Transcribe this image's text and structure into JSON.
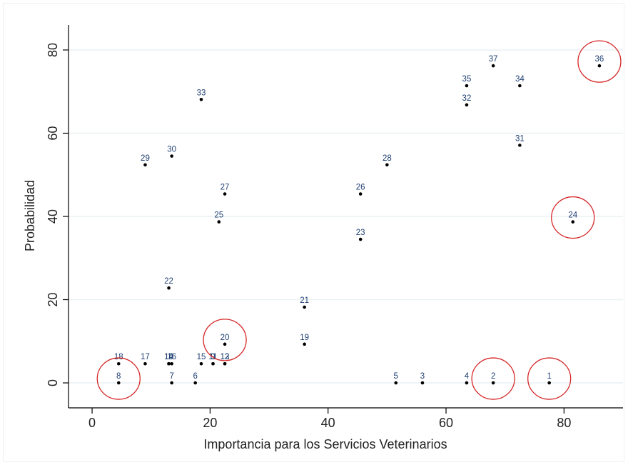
{
  "chart_data": {
    "type": "scatter",
    "title": "",
    "xlabel": "Importancia para los Servicios Veterinarios",
    "ylabel": "Probabilidad",
    "xlim": [
      -4,
      90
    ],
    "ylim": [
      -6,
      86
    ],
    "xticks": [
      0,
      20,
      40,
      60,
      80
    ],
    "yticks": [
      0,
      20,
      40,
      60,
      80
    ],
    "grid": "horizontal",
    "legend": "none",
    "colors": {
      "grid": "#eaf1f4",
      "axis": "#000000",
      "point": "#000000",
      "label": "#1f3f73",
      "highlight": "#d62728"
    },
    "points": [
      {
        "label": "1",
        "x": 77.5,
        "y": 0
      },
      {
        "label": "2",
        "x": 68,
        "y": 0,
        "highlight": true
      },
      {
        "label": "3",
        "x": 56,
        "y": 0
      },
      {
        "label": "4",
        "x": 63.5,
        "y": 0
      },
      {
        "label": "5",
        "x": 51.5,
        "y": 0
      },
      {
        "label": "6",
        "x": 17.5,
        "y": 0
      },
      {
        "label": "7",
        "x": 13.5,
        "y": 0
      },
      {
        "label": "8",
        "x": 4.5,
        "y": 0,
        "highlight": true
      },
      {
        "label": "9",
        "x": 20.5,
        "y": 4.6
      },
      {
        "label": "10",
        "x": 13,
        "y": 4.6
      },
      {
        "label": "11",
        "x": 20.5,
        "y": 4.6
      },
      {
        "label": "12",
        "x": 22.5,
        "y": 4.6
      },
      {
        "label": "13",
        "x": 22.5,
        "y": 4.6
      },
      {
        "label": "14",
        "x": 13,
        "y": 4.6
      },
      {
        "label": "15",
        "x": 18.5,
        "y": 4.6
      },
      {
        "label": "16",
        "x": 13.5,
        "y": 4.6
      },
      {
        "label": "17",
        "x": 9,
        "y": 4.6
      },
      {
        "label": "18",
        "x": 4.5,
        "y": 4.6
      },
      {
        "label": "19",
        "x": 36,
        "y": 9.3
      },
      {
        "label": "20",
        "x": 22.5,
        "y": 9.3,
        "highlight": true
      },
      {
        "label": "21",
        "x": 36,
        "y": 18.2
      },
      {
        "label": "22",
        "x": 13,
        "y": 22.8
      },
      {
        "label": "23",
        "x": 45.5,
        "y": 34.5
      },
      {
        "label": "24",
        "x": 81.5,
        "y": 38.7,
        "highlight": true
      },
      {
        "label": "25",
        "x": 21.5,
        "y": 38.7
      },
      {
        "label": "26",
        "x": 45.5,
        "y": 45.4
      },
      {
        "label": "27",
        "x": 22.5,
        "y": 45.4
      },
      {
        "label": "28",
        "x": 50,
        "y": 52.4
      },
      {
        "label": "29",
        "x": 9,
        "y": 52.4
      },
      {
        "label": "30",
        "x": 13.5,
        "y": 54.5
      },
      {
        "label": "31",
        "x": 72.5,
        "y": 57.1
      },
      {
        "label": "32",
        "x": 63.5,
        "y": 66.8
      },
      {
        "label": "33",
        "x": 18.5,
        "y": 68.1
      },
      {
        "label": "34",
        "x": 72.5,
        "y": 71.4
      },
      {
        "label": "35",
        "x": 63.5,
        "y": 71.4
      },
      {
        "label": "36",
        "x": 86,
        "y": 76.2,
        "highlight": true
      },
      {
        "label": "37",
        "x": 68,
        "y": 76.2
      }
    ],
    "highlight_ring_points": [
      "1",
      "2",
      "8",
      "20",
      "24",
      "36"
    ]
  }
}
